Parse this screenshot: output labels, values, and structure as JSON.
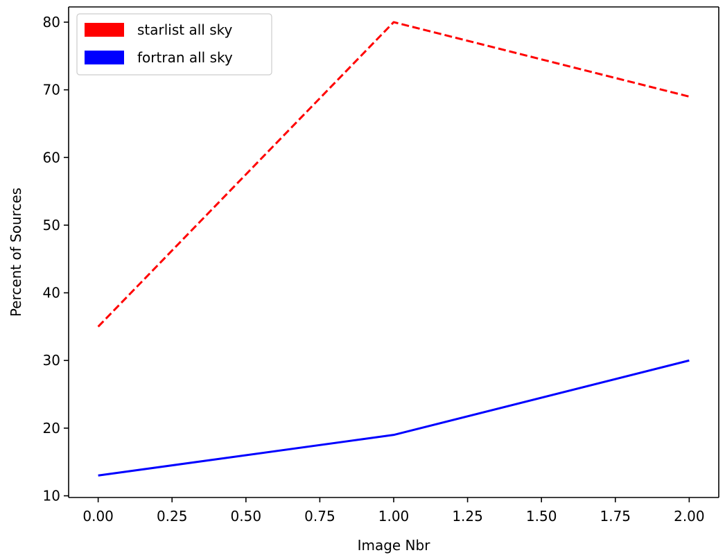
{
  "chart_data": {
    "type": "line",
    "title": "",
    "xlabel": "Image Nbr",
    "ylabel": "Percent of Sources",
    "x": [
      0,
      1,
      2
    ],
    "xlim": [
      -0.1,
      2.1
    ],
    "ylim": [
      9.75,
      82.25
    ],
    "xticks": [
      0.0,
      0.25,
      0.5,
      0.75,
      1.0,
      1.25,
      1.5,
      1.75,
      2.0
    ],
    "xtick_labels": [
      "0.00",
      "0.25",
      "0.50",
      "0.75",
      "1.00",
      "1.25",
      "1.50",
      "1.75",
      "2.00"
    ],
    "yticks": [
      10,
      20,
      30,
      40,
      50,
      60,
      70,
      80
    ],
    "ytick_labels": [
      "10",
      "20",
      "30",
      "40",
      "50",
      "60",
      "70",
      "80"
    ],
    "grid": false,
    "legend_position": "top-left",
    "series": [
      {
        "name": "starlist all sky",
        "values": [
          35,
          80,
          69
        ],
        "color": "#ff0000",
        "style": "dashed"
      },
      {
        "name": "fortran all sky",
        "values": [
          13,
          19,
          30
        ],
        "color": "#0000ff",
        "style": "solid"
      }
    ]
  }
}
